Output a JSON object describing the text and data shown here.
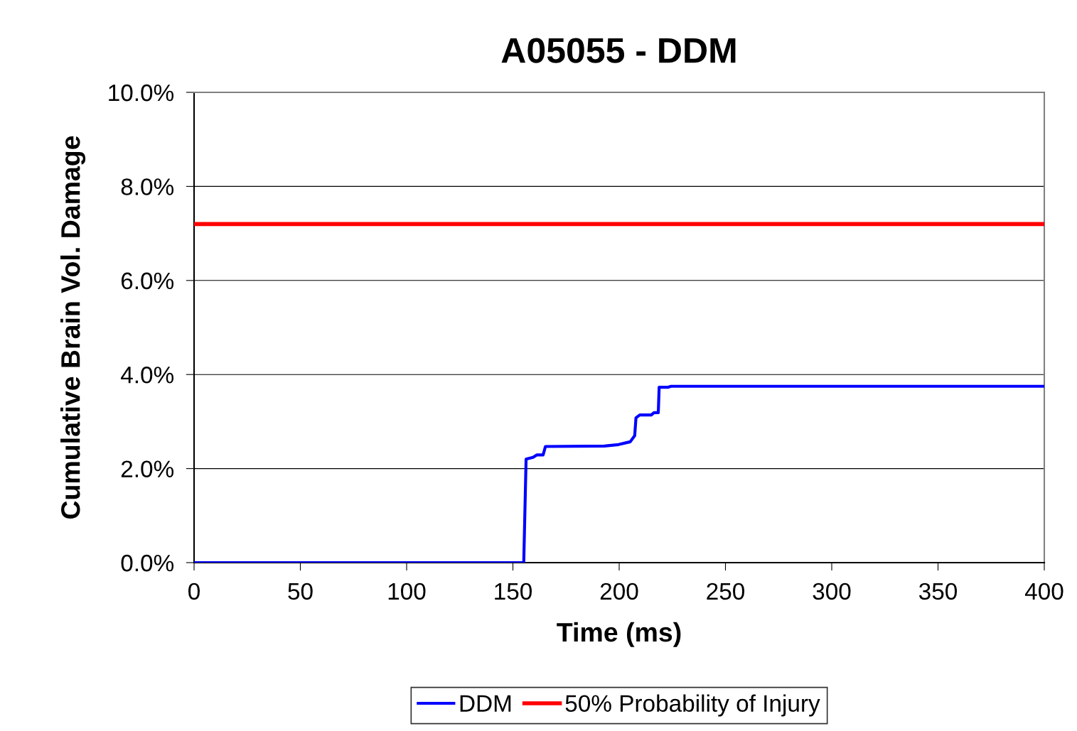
{
  "chart_data": {
    "type": "line",
    "title": "A05055 - DDM",
    "xlabel": "Time (ms)",
    "ylabel": "Cumulative Brain Vol. Damage",
    "series": [
      {
        "name": "DDM",
        "color": "#0000ff",
        "x": [
          0,
          155.1,
          156.2,
          159.5,
          161.2,
          164.2,
          165.3,
          193.0,
          199.7,
          205.2,
          207.3,
          207.9,
          209.7,
          215.1,
          216.4,
          218.4,
          218.8,
          223.1,
          224.4,
          400
        ],
        "values": [
          0,
          0,
          2.2,
          2.24,
          2.29,
          2.29,
          2.47,
          2.48,
          2.51,
          2.57,
          2.7,
          3.08,
          3.14,
          3.14,
          3.19,
          3.19,
          3.73,
          3.73,
          3.75,
          3.75
        ]
      },
      {
        "name": "50% Probability of Injury",
        "color": "#ff0000",
        "x": [
          0,
          400
        ],
        "values": [
          7.2,
          7.2
        ]
      }
    ],
    "xlim": [
      0,
      400
    ],
    "xticks": [
      0,
      50,
      100,
      150,
      200,
      250,
      300,
      350,
      400
    ],
    "ylim": [
      0,
      10
    ],
    "yticks": [
      {
        "value": 0,
        "label": "0.0%"
      },
      {
        "value": 2,
        "label": "2.0%"
      },
      {
        "value": 4,
        "label": "4.0%"
      },
      {
        "value": 6,
        "label": "6.0%"
      },
      {
        "value": 8,
        "label": "8.0%"
      },
      {
        "value": 10,
        "label": "10.0%"
      }
    ],
    "grid": "y",
    "legend": "bottom",
    "marker": "none",
    "line_style": "solid"
  }
}
